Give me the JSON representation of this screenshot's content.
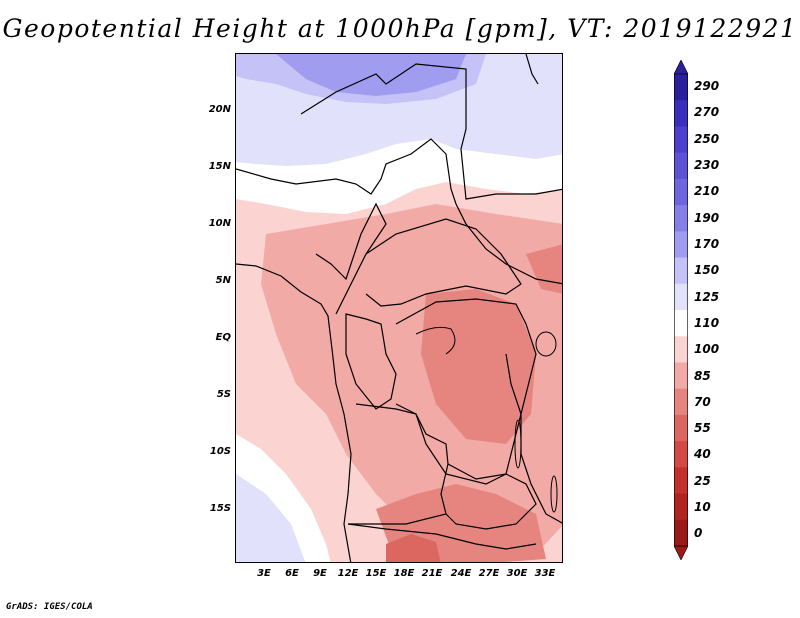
{
  "title": "Geopotential Height at 1000hPa [gpm], VT: 2019122921",
  "credit": "GrADS: IGES/COLA",
  "lat_labels": [
    "20N",
    "15N",
    "10N",
    "5N",
    "EQ",
    "5S",
    "10S",
    "15S"
  ],
  "lon_labels": [
    "3E",
    "6E",
    "9E",
    "12E",
    "15E",
    "18E",
    "21E",
    "24E",
    "27E",
    "30E",
    "33E"
  ],
  "colorbar": {
    "labels": [
      "290",
      "270",
      "250",
      "230",
      "210",
      "190",
      "170",
      "150",
      "125",
      "110",
      "100",
      "85",
      "70",
      "55",
      "40",
      "25",
      "10",
      "0"
    ],
    "colors": [
      "#2a1f9c",
      "#3a2ebd",
      "#4a40cc",
      "#5c52d6",
      "#6e66df",
      "#8580e8",
      "#a09cef",
      "#c4c2f6",
      "#e2e1fb",
      "#ffffff",
      "#fbd4d2",
      "#f2aaa6",
      "#e68580",
      "#dc6660",
      "#d24a44",
      "#c4302b",
      "#b02420",
      "#9a1a18"
    ]
  },
  "map_colors": {
    "deep_blue": "#a09cef",
    "light_blue": "#c4c2f6",
    "pale_blue": "#e2e1fb",
    "white": "#ffffff",
    "pale_pink": "#fbd4d2",
    "pink": "#f2aaa6",
    "salmon": "#e68580",
    "red": "#dc6660"
  }
}
